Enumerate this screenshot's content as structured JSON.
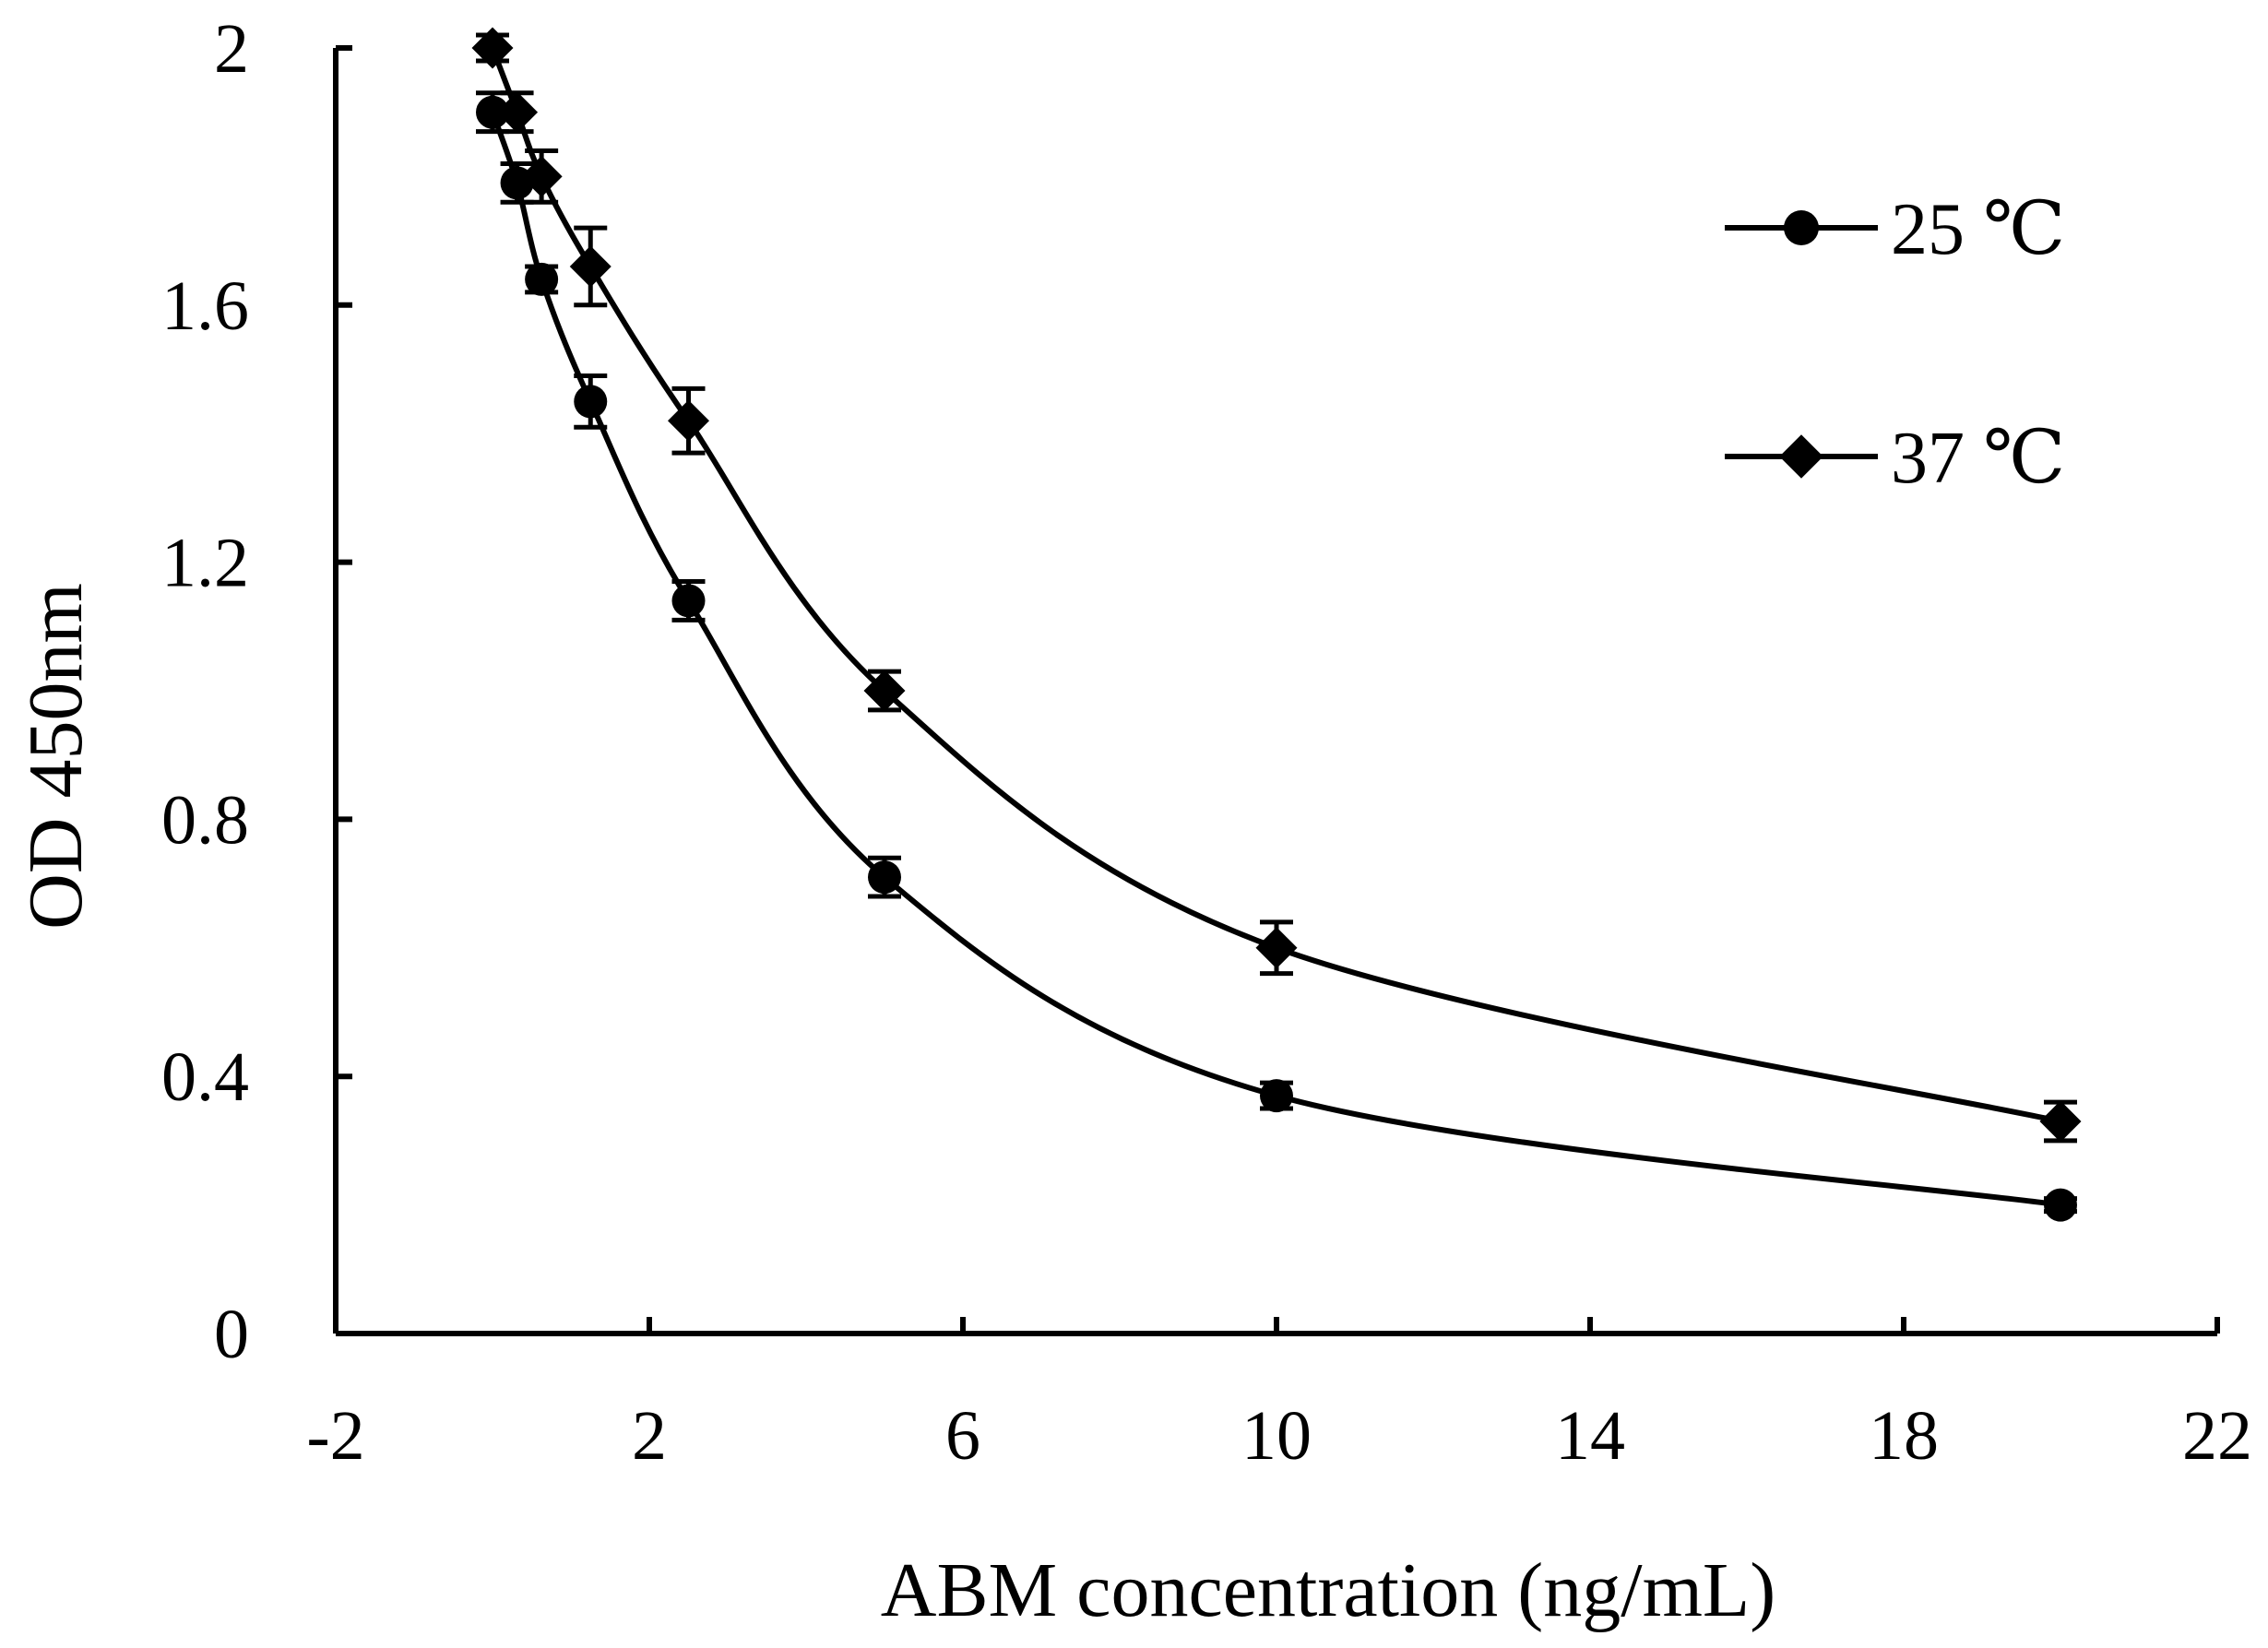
{
  "chart_data": {
    "type": "line",
    "title": "",
    "xlabel": "ABM concentration (ng/mL)",
    "ylabel": "OD 450nm",
    "xlim": [
      -2,
      22
    ],
    "ylim": [
      0,
      2
    ],
    "x_ticks": [
      "-2",
      "2",
      "6",
      "10",
      "14",
      "18",
      "22"
    ],
    "y_ticks": [
      "0",
      "0.4",
      "0.8",
      "1.2",
      "1.6",
      "2"
    ],
    "grid": false,
    "legend_position": "top-right",
    "series": [
      {
        "name": "25 ℃",
        "marker": "circle",
        "x": [
          0,
          0.3125,
          0.625,
          1.25,
          2.5,
          5,
          10,
          20
        ],
        "y": [
          1.9,
          1.79,
          1.64,
          1.45,
          1.14,
          0.71,
          0.37,
          0.2
        ],
        "error": [
          0.03,
          0.03,
          0.02,
          0.04,
          0.03,
          0.03,
          0.02,
          0.01
        ]
      },
      {
        "name": "37 ℃",
        "marker": "diamond",
        "x": [
          0,
          0.3125,
          0.625,
          1.25,
          2.5,
          5,
          10,
          20
        ],
        "y": [
          2.0,
          1.9,
          1.8,
          1.66,
          1.42,
          1.0,
          0.6,
          0.33
        ],
        "error": [
          0.02,
          0.03,
          0.04,
          0.06,
          0.05,
          0.03,
          0.04,
          0.03
        ]
      }
    ]
  }
}
